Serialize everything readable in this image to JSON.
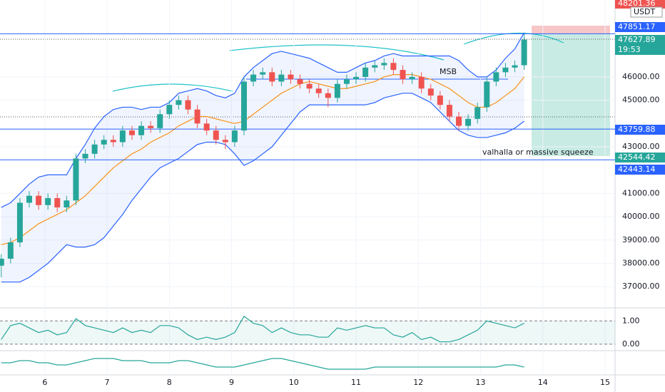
{
  "chart_data": {
    "type": "candlestick",
    "x": [
      5.3,
      5.45,
      5.6,
      5.75,
      5.9,
      6.05,
      6.2,
      6.35,
      6.5,
      6.65,
      6.8,
      6.95,
      7.1,
      7.25,
      7.4,
      7.55,
      7.7,
      7.85,
      8.0,
      8.15,
      8.3,
      8.45,
      8.6,
      8.75,
      8.9,
      9.05,
      9.2,
      9.35,
      9.5,
      9.65,
      9.8,
      9.95,
      10.1,
      10.25,
      10.4,
      10.55,
      10.7,
      10.85,
      11.0,
      11.15,
      11.3,
      11.45,
      11.6,
      11.75,
      11.9,
      12.05,
      12.2,
      12.35,
      12.5,
      12.65,
      12.8,
      12.95,
      13.1,
      13.25,
      13.4,
      13.55,
      13.7
    ],
    "open": [
      37900,
      38200,
      38900,
      40600,
      40900,
      40500,
      40800,
      40400,
      40700,
      42500,
      42700,
      43100,
      43300,
      43200,
      43700,
      43500,
      43900,
      43800,
      44400,
      44800,
      45000,
      44600,
      44000,
      43700,
      43300,
      43200,
      43700,
      45800,
      46100,
      46200,
      45800,
      46100,
      45900,
      45700,
      45500,
      45300,
      45100,
      45700,
      45900,
      46000,
      46400,
      46500,
      46600,
      46300,
      45900,
      46000,
      45500,
      45200,
      44800,
      44300,
      43900,
      44200,
      44700,
      45800,
      46200,
      46400,
      46500
    ],
    "high": [
      38400,
      39100,
      40800,
      41100,
      41100,
      41000,
      41000,
      40900,
      42700,
      42900,
      43300,
      43500,
      43500,
      43900,
      43900,
      44100,
      44100,
      44600,
      45000,
      45200,
      45200,
      44800,
      44200,
      43900,
      43500,
      43900,
      46000,
      46300,
      46400,
      46400,
      46300,
      46300,
      46100,
      45900,
      45700,
      45500,
      45900,
      46100,
      46200,
      46600,
      46700,
      46800,
      46800,
      46500,
      46200,
      46200,
      45700,
      45400,
      45000,
      44500,
      44400,
      44900,
      46000,
      46400,
      46600,
      46700,
      47850
    ],
    "low": [
      37400,
      38000,
      38700,
      40400,
      40300,
      40300,
      40200,
      40200,
      40500,
      42300,
      42500,
      42900,
      43000,
      43000,
      43300,
      43300,
      43600,
      43600,
      44200,
      44600,
      44400,
      43800,
      43500,
      43100,
      42900,
      43000,
      43500,
      45600,
      45900,
      45600,
      45600,
      45700,
      45500,
      45300,
      45100,
      44700,
      44900,
      45500,
      45700,
      45800,
      46200,
      46300,
      46100,
      45700,
      45700,
      45300,
      45000,
      44600,
      44100,
      43700,
      43700,
      44000,
      44500,
      45600,
      46000,
      46200,
      46300
    ],
    "close": [
      38200,
      38900,
      40600,
      40900,
      40500,
      40800,
      40400,
      40700,
      42500,
      42700,
      43100,
      43300,
      43200,
      43700,
      43500,
      43900,
      43800,
      44400,
      44800,
      45000,
      44600,
      44000,
      43700,
      43300,
      43200,
      43700,
      45800,
      46100,
      46200,
      45800,
      46100,
      45900,
      45700,
      45500,
      45300,
      45100,
      45700,
      45900,
      46000,
      46400,
      46500,
      46600,
      46300,
      45900,
      46000,
      45500,
      45200,
      44800,
      44300,
      43900,
      44200,
      44700,
      45800,
      46200,
      46400,
      46500,
      47600
    ],
    "up_color": "#26a69a",
    "down_color": "#ef5350",
    "ma": [
      38800,
      38900,
      39100,
      39400,
      39700,
      39900,
      40100,
      40300,
      40600,
      40900,
      41300,
      41700,
      42100,
      42400,
      42700,
      42900,
      43200,
      43400,
      43600,
      43900,
      44100,
      44300,
      44300,
      44200,
      44100,
      44000,
      44100,
      44400,
      44700,
      45000,
      45300,
      45500,
      45700,
      45800,
      45700,
      45600,
      45500,
      45500,
      45600,
      45700,
      45800,
      46000,
      46100,
      46100,
      46100,
      46000,
      45900,
      45700,
      45500,
      45200,
      44900,
      44700,
      44700,
      44900,
      45200,
      45500,
      46000
    ],
    "ma_color": "#f7931a",
    "upper": [
      40400,
      40600,
      41000,
      41400,
      41700,
      41800,
      41800,
      41800,
      42500,
      43100,
      43800,
      44300,
      44600,
      44700,
      44700,
      44600,
      44700,
      44700,
      44900,
      45300,
      45400,
      45500,
      45400,
      45200,
      45100,
      45300,
      46000,
      46400,
      46700,
      47000,
      47100,
      47000,
      46900,
      46800,
      46600,
      46400,
      46200,
      46200,
      46400,
      46600,
      46700,
      46900,
      47000,
      46900,
      46900,
      46900,
      46900,
      46900,
      46900,
      46700,
      46300,
      46000,
      46000,
      46300,
      46800,
      47200,
      47900
    ],
    "lower": [
      37200,
      37200,
      37200,
      37400,
      37700,
      38000,
      38400,
      38800,
      38700,
      38700,
      38800,
      39100,
      39600,
      40100,
      40700,
      41200,
      41700,
      42100,
      42300,
      42500,
      42800,
      43100,
      43200,
      43200,
      43100,
      42700,
      42200,
      42400,
      42700,
      43000,
      43500,
      44000,
      44500,
      44800,
      44800,
      44800,
      44800,
      44800,
      44800,
      44800,
      44900,
      45100,
      45200,
      45300,
      45300,
      45100,
      44900,
      44500,
      44100,
      43700,
      43500,
      43400,
      43400,
      43500,
      43600,
      43800,
      44100
    ],
    "band_color": "#2962ff",
    "xlim": [
      5.28,
      15.16
    ],
    "xticks": [
      6,
      7,
      8,
      9,
      10,
      11,
      12,
      13,
      14,
      15
    ],
    "ylim": [
      36150,
      49300
    ],
    "yticks": [
      {
        "value": 46000,
        "label": "46000.00"
      },
      {
        "value": 45000,
        "label": "45000.00"
      },
      {
        "value": 43000,
        "label": "43000.00"
      },
      {
        "value": 41000,
        "label": "41000.00"
      },
      {
        "value": 40000,
        "label": "40000.00"
      },
      {
        "value": 39000,
        "label": "39000.00"
      },
      {
        "value": 38000,
        "label": "38000.00"
      },
      {
        "value": 37000,
        "label": "37000.00"
      }
    ],
    "levels": [
      47851.17,
      43759.88,
      42443.14
    ],
    "level_color": "#2962ff",
    "price_tags": [
      {
        "label": "48201.36",
        "color": "#ef5350"
      },
      {
        "label": "USDT",
        "color": "#ffffff"
      },
      {
        "label": "47851.17",
        "color": "#2962ff"
      },
      {
        "label": "47627.89",
        "color": "#26a69a"
      },
      {
        "label": "19:53",
        "color": "#26a69a"
      },
      {
        "label": "43759.88",
        "color": "#2962ff"
      },
      {
        "label": "42544.42",
        "color": "#26a69a"
      },
      {
        "label": "42443.14",
        "color": "#2962ff"
      }
    ],
    "annotations": [
      "MSB",
      "valhalla or massive squeeze"
    ],
    "oscillator": {
      "values": [
        0.2,
        0.8,
        0.9,
        0.7,
        0.5,
        0.6,
        0.4,
        0.5,
        1.1,
        0.8,
        0.7,
        0.6,
        0.5,
        0.7,
        0.5,
        0.6,
        0.5,
        0.8,
        0.8,
        0.7,
        0.4,
        0.2,
        0.3,
        0.2,
        0.3,
        0.5,
        1.2,
        0.9,
        0.8,
        0.5,
        0.7,
        0.5,
        0.4,
        0.4,
        0.3,
        0.3,
        0.7,
        0.6,
        0.7,
        0.8,
        0.7,
        0.7,
        0.4,
        0.3,
        0.5,
        0.2,
        0.3,
        0.1,
        0.1,
        0.2,
        0.4,
        0.6,
        1.0,
        0.9,
        0.8,
        0.7,
        0.9
      ],
      "ylim": [
        -0.22,
        1.5
      ],
      "yticks": [
        {
          "value": 1,
          "label": "1.00"
        },
        {
          "value": 0,
          "label": "0.00"
        }
      ],
      "color": "#26a69a"
    },
    "momentum": {
      "values": [
        5,
        5,
        6,
        6,
        5,
        5,
        4,
        4,
        5,
        6,
        7,
        7,
        7,
        6,
        6,
        6,
        5,
        5,
        5,
        6,
        6,
        5,
        4,
        3,
        3,
        3,
        4,
        5,
        6,
        7,
        7,
        6,
        5,
        4,
        3,
        2,
        2,
        2,
        2,
        2,
        3,
        3,
        3,
        3,
        3,
        3,
        3,
        3,
        3,
        3,
        3,
        3,
        3,
        3,
        4,
        4,
        3
      ],
      "ylim": [
        0,
        10
      ],
      "color": "#26a69a"
    }
  }
}
